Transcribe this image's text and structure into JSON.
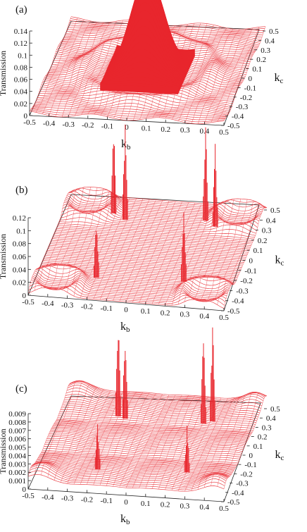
{
  "chart_data": [
    {
      "type": "surface",
      "panel_label": "(a)",
      "zlabel": "Transmission",
      "xlabel": "k",
      "xlabel_sub": "b",
      "ylabel": "k",
      "ylabel_sub": "c",
      "xlim": [
        -0.5,
        0.5
      ],
      "ylim": [
        -0.5,
        0.5
      ],
      "zlim": [
        0,
        0.14
      ],
      "x_ticks": [
        "-0.5",
        "-0.4",
        "-0.3",
        "-0.2",
        "-0.1",
        "0",
        "0.1",
        "0.2",
        "0.3",
        "0.4",
        "0.5"
      ],
      "y_ticks": [
        "-0.5",
        "-0.4",
        "-0.3",
        "-0.2",
        "-0.1",
        "0",
        "0.1",
        "0.2",
        "0.3",
        "0.4",
        "0.5"
      ],
      "z_ticks": [
        "0",
        "0.02",
        "0.04",
        "0.06",
        "0.08",
        "0.1",
        "0.12",
        "0.14"
      ],
      "color": "#e8262d",
      "peaks": [
        {
          "kb": 0,
          "kc": 0,
          "height": 0.155,
          "width": 0.16
        }
      ]
    },
    {
      "type": "surface",
      "panel_label": "(b)",
      "zlabel": "Transmission",
      "xlabel": "k",
      "xlabel_sub": "b",
      "ylabel": "k",
      "ylabel_sub": "c",
      "xlim": [
        -0.5,
        0.5
      ],
      "ylim": [
        -0.5,
        0.5
      ],
      "zlim": [
        0,
        0.12
      ],
      "x_ticks": [
        "-0.5",
        "-0.4",
        "-0.3",
        "-0.2",
        "-0.1",
        "0",
        "0.1",
        "0.2",
        "0.3",
        "0.4",
        "0.5"
      ],
      "y_ticks": [
        "-0.5",
        "-0.4",
        "-0.3",
        "-0.2",
        "-0.1",
        "0",
        "0.1",
        "0.2",
        "0.3",
        "0.4",
        "0.5"
      ],
      "z_ticks": [
        "0",
        "0.02",
        "0.04",
        "0.06",
        "0.08",
        "0.1",
        "0.12"
      ],
      "color": "#e8262d",
      "peaks": [
        {
          "kb": -0.25,
          "kc": 0.35,
          "height": 0.14,
          "width": 0.012
        },
        {
          "kb": -0.18,
          "kc": 0.3,
          "height": 0.16,
          "width": 0.012
        },
        {
          "kb": 0.28,
          "kc": 0.3,
          "height": 0.13,
          "width": 0.012
        },
        {
          "kb": 0.22,
          "kc": 0.35,
          "height": 0.15,
          "width": 0.012
        },
        {
          "kb": -0.2,
          "kc": -0.28,
          "height": 0.1,
          "width": 0.012
        },
        {
          "kb": 0.24,
          "kc": -0.25,
          "height": 0.11,
          "width": 0.012
        }
      ]
    },
    {
      "type": "surface",
      "panel_label": "(c)",
      "zlabel": "Transmission",
      "xlabel": "k",
      "xlabel_sub": "b",
      "ylabel": "k",
      "ylabel_sub": "c",
      "xlim": [
        -0.5,
        0.5
      ],
      "ylim": [
        -0.5,
        0.5
      ],
      "zlim": [
        0,
        0.009
      ],
      "x_ticks": [
        "-0.5",
        "-0.4",
        "-0.3",
        "-0.2",
        "-0.1",
        "0",
        "0.1",
        "0.2",
        "0.3",
        "0.4",
        "0.5"
      ],
      "y_ticks": [
        "-0.5",
        "-0.4",
        "-0.3",
        "-0.2",
        "-0.1",
        "0",
        "0.1",
        "0.2",
        "0.3",
        "0.4",
        "0.5"
      ],
      "z_ticks": [
        "0",
        "0.001",
        "0.002",
        "0.003",
        "0.004",
        "0.005",
        "0.006",
        "0.007",
        "0.008",
        "0.009"
      ],
      "color": "#e8262d",
      "peaks": [
        {
          "kb": -0.22,
          "kc": 0.32,
          "height": 0.0125,
          "width": 0.012
        },
        {
          "kb": -0.18,
          "kc": 0.3,
          "height": 0.011,
          "width": 0.012
        },
        {
          "kb": 0.26,
          "kc": 0.33,
          "height": 0.0125,
          "width": 0.012
        },
        {
          "kb": 0.22,
          "kc": 0.3,
          "height": 0.011,
          "width": 0.012
        },
        {
          "kb": -0.2,
          "kc": -0.25,
          "height": 0.006,
          "width": 0.02
        },
        {
          "kb": 0.25,
          "kc": -0.22,
          "height": 0.006,
          "width": 0.02
        }
      ]
    }
  ]
}
